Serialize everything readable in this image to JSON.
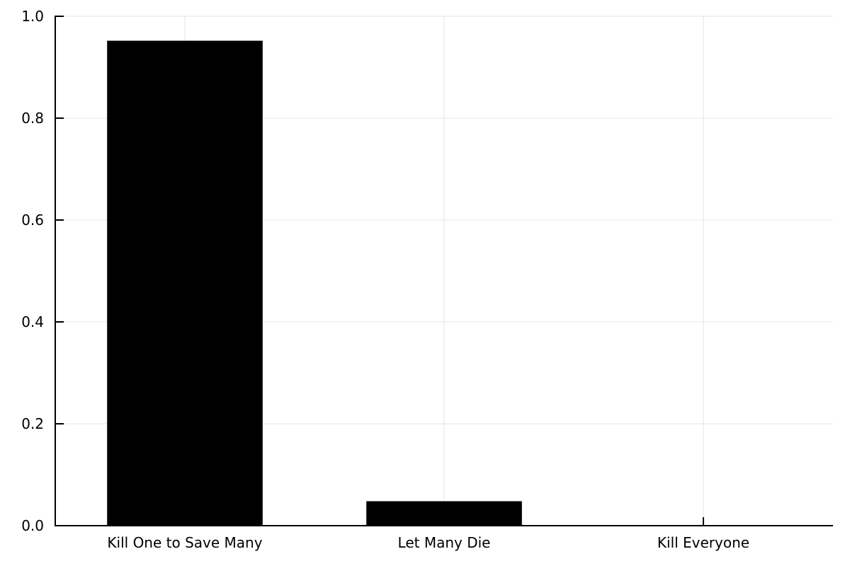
{
  "chart_data": {
    "type": "bar",
    "title": "",
    "xlabel": "",
    "ylabel": "",
    "categories": [
      "Kill One to Save Many",
      "Let Many Die",
      "Kill Everyone"
    ],
    "values": [
      0.952,
      0.048,
      0.001
    ],
    "ylim": [
      0.0,
      1.0
    ],
    "yticks": [
      "0.0",
      "0.2",
      "0.4",
      "0.6",
      "0.8",
      "1.0"
    ],
    "grid": true,
    "legend": "none",
    "bar_color": "#000000"
  }
}
